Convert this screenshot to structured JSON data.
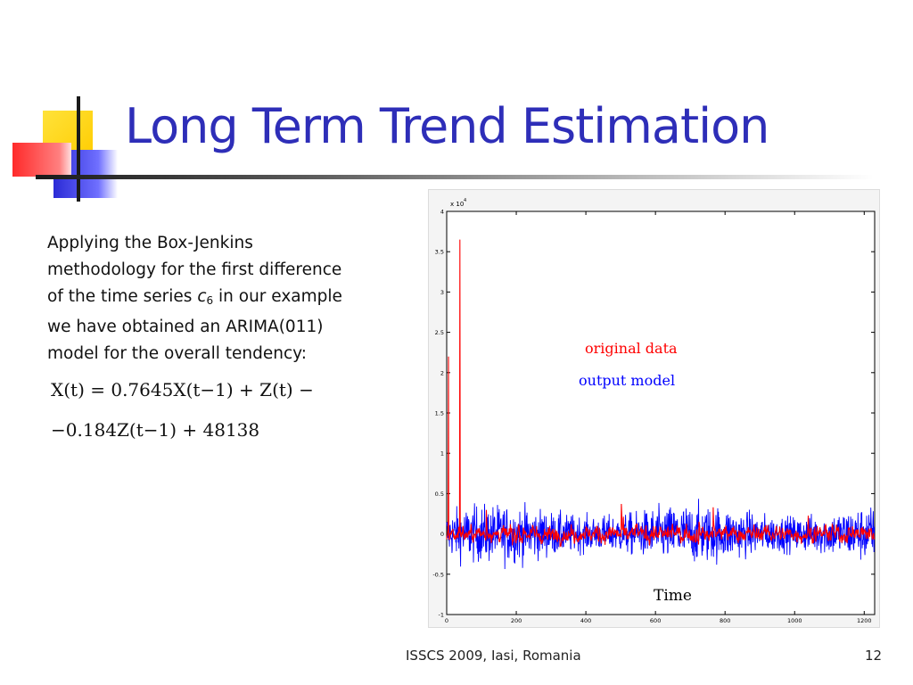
{
  "slide": {
    "title": "Long Term Trend Estimation",
    "body": {
      "line1": "Applying the Box-Jenkins",
      "line2": "methodology for the first difference",
      "line3_pre": "of the time series ",
      "var_c": "c",
      "var_sub": "6",
      "line3_post": " in our example",
      "line4": "we have obtained an ARIMA(011)",
      "line5": "model for the overall tendency:"
    },
    "equation": {
      "line1": "X(t) = 0.7645X(t−1) + Z(t) −",
      "line2": "−0.184Z(t−1) + 48138"
    },
    "footer": {
      "center": "ISSCS 2009, Iasi, Romania",
      "page": "12"
    }
  },
  "chart_data": {
    "type": "line",
    "exponent_label": "x 10",
    "exponent_sup": "4",
    "xlim": [
      0,
      1230
    ],
    "ylim": [
      -1,
      4
    ],
    "x_ticks": [
      "0",
      "200",
      "400",
      "600",
      "800",
      "1000",
      "1200"
    ],
    "x_tick_values": [
      0,
      200,
      400,
      600,
      800,
      1000,
      1200
    ],
    "y_ticks": [
      "-1",
      "-0.5",
      "0",
      "0.5",
      "1",
      "1.5",
      "2",
      "2.5",
      "3",
      "3.5",
      "4"
    ],
    "y_tick_values": [
      -1,
      -0.5,
      0,
      0.5,
      1,
      1.5,
      2,
      2.5,
      3,
      3.5,
      4
    ],
    "xlabel": "Time",
    "legend": [
      {
        "label": "original data",
        "color": "#ff0000"
      },
      {
        "label": "output model",
        "color": "#0000ff"
      }
    ],
    "series": [
      {
        "name": "original data",
        "color": "#ff0000",
        "amplitude": 0.1,
        "spikes": [
          {
            "x": 5,
            "y": 2.2
          },
          {
            "x": 38,
            "y": 3.65
          }
        ]
      },
      {
        "name": "output model",
        "color": "#0000ff",
        "amplitude": 0.3
      }
    ],
    "n_points": 1230
  }
}
